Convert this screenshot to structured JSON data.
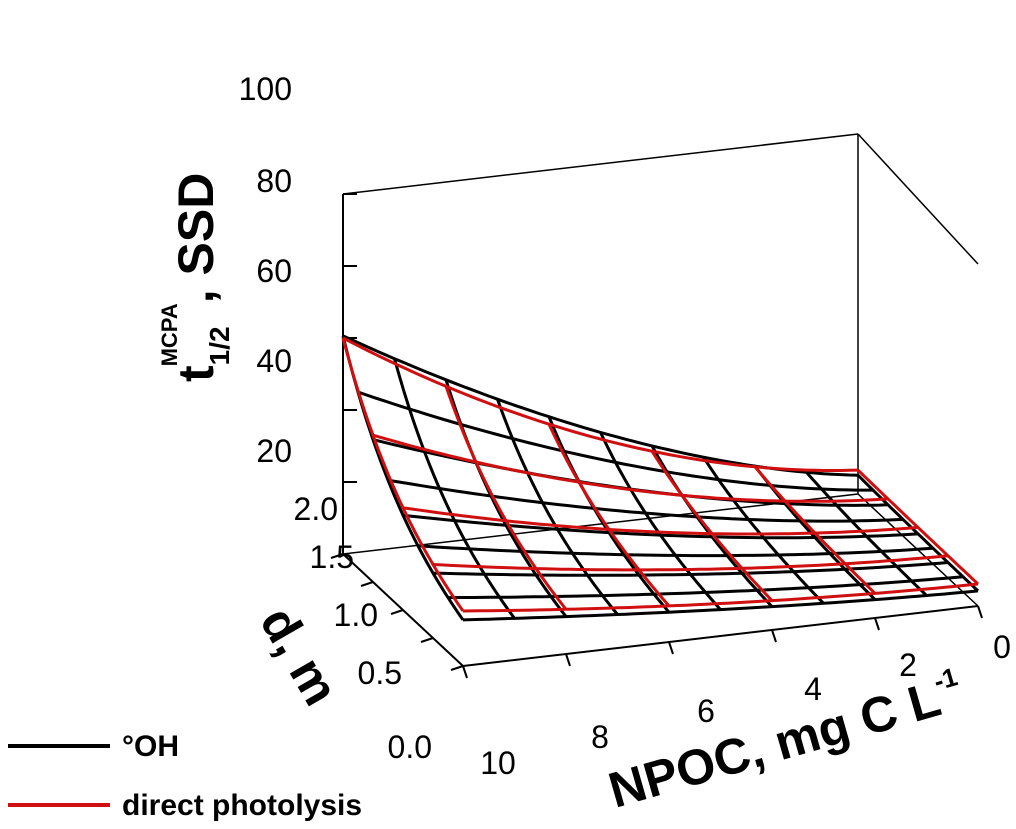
{
  "chart_data": {
    "type": "surface",
    "axes": {
      "x": {
        "label_main": "NPOC, mg C L",
        "label_sup": "-1",
        "ticks": [
          "0",
          "2",
          "4",
          "6",
          "8",
          "10"
        ],
        "range": [
          0,
          10
        ]
      },
      "y": {
        "label": "d, m",
        "ticks": [
          "0.0",
          "0.5",
          "1.0",
          "1.5",
          "2.0"
        ],
        "range": [
          0,
          2
        ]
      },
      "z": {
        "label_main": "t",
        "label_sub": "1/2",
        "label_sup": "MCPA",
        "label_tail": ", SSD",
        "ticks": [
          "20",
          "40",
          "60",
          "80",
          "100"
        ],
        "range": [
          0,
          100
        ]
      }
    },
    "series": [
      {
        "name": "°OH",
        "color": "#000000",
        "npoc_grid": [
          0,
          1,
          2,
          3,
          4,
          5,
          6,
          7,
          8,
          9,
          10
        ],
        "d_grid": [
          0,
          0.25,
          0.5,
          0.75,
          1.0,
          1.25,
          1.5,
          1.75,
          2.0
        ]
      },
      {
        "name": "direct photolysis",
        "color": "#d01010",
        "npoc_grid": [
          0,
          2,
          4,
          6,
          8,
          10
        ],
        "d_grid": [
          0,
          0.5,
          1.0,
          1.5,
          2.0
        ]
      }
    ],
    "legend": {
      "placement": "bottom-left"
    },
    "grid": false
  }
}
